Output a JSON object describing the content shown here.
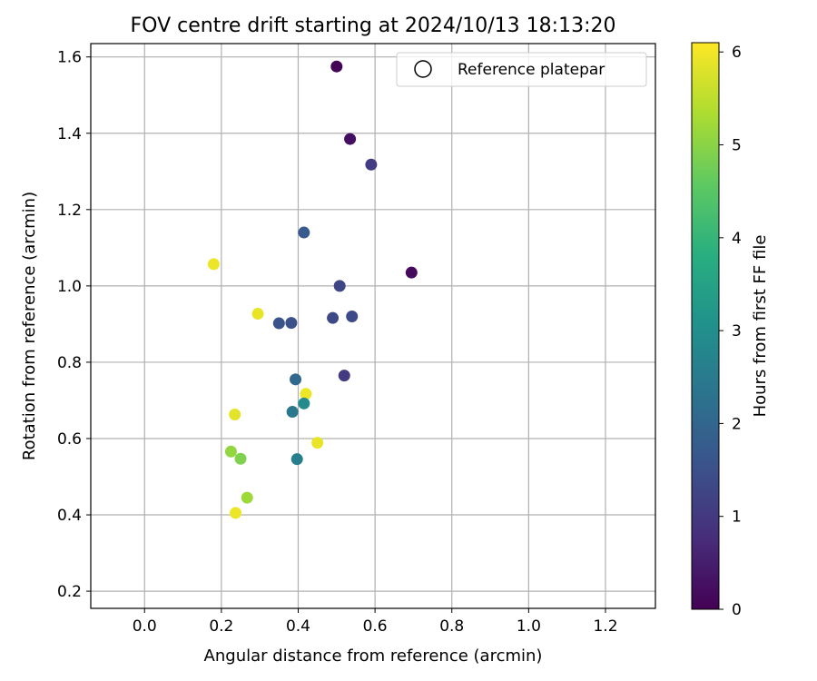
{
  "chart_data": {
    "type": "scatter",
    "title": "FOV centre drift starting at 2024/10/13 18:13:20",
    "xlabel": "Angular distance from reference (arcmin)",
    "ylabel": "Rotation from reference (arcmin)",
    "xlim": [
      -0.14,
      1.33
    ],
    "ylim": [
      0.155,
      1.635
    ],
    "xticks": [
      "0.0",
      "0.2",
      "0.4",
      "0.6",
      "0.8",
      "1.0",
      "1.2"
    ],
    "yticks": [
      "0.2",
      "0.4",
      "0.6",
      "0.8",
      "1.0",
      "1.2",
      "1.4",
      "1.6"
    ],
    "grid": true,
    "legend": {
      "placement": "top-right",
      "entries": [
        "Reference platepar"
      ]
    },
    "colorbar": {
      "label": "Hours from first FF file",
      "colormap": "viridis",
      "range": [
        0,
        6.1
      ],
      "ticks": [
        "0",
        "1",
        "2",
        "3",
        "4",
        "5",
        "6"
      ]
    },
    "points": [
      {
        "x": 0.5,
        "y": 1.575,
        "c": 0.05
      },
      {
        "x": 0.535,
        "y": 1.385,
        "c": 0.25
      },
      {
        "x": 0.59,
        "y": 1.318,
        "c": 1.1
      },
      {
        "x": 0.695,
        "y": 1.035,
        "c": 0.15
      },
      {
        "x": 0.415,
        "y": 1.14,
        "c": 1.75
      },
      {
        "x": 0.18,
        "y": 1.057,
        "c": 5.95
      },
      {
        "x": 0.508,
        "y": 1.0,
        "c": 1.25
      },
      {
        "x": 0.295,
        "y": 0.927,
        "c": 5.9
      },
      {
        "x": 0.35,
        "y": 0.902,
        "c": 1.55
      },
      {
        "x": 0.382,
        "y": 0.903,
        "c": 1.5
      },
      {
        "x": 0.49,
        "y": 0.916,
        "c": 1.35
      },
      {
        "x": 0.54,
        "y": 0.92,
        "c": 1.35
      },
      {
        "x": 0.393,
        "y": 0.755,
        "c": 2.05
      },
      {
        "x": 0.52,
        "y": 0.765,
        "c": 1.05
      },
      {
        "x": 0.42,
        "y": 0.717,
        "c": 5.95
      },
      {
        "x": 0.415,
        "y": 0.692,
        "c": 2.9
      },
      {
        "x": 0.385,
        "y": 0.67,
        "c": 2.4
      },
      {
        "x": 0.235,
        "y": 0.663,
        "c": 5.85
      },
      {
        "x": 0.45,
        "y": 0.589,
        "c": 5.9
      },
      {
        "x": 0.225,
        "y": 0.566,
        "c": 5.1
      },
      {
        "x": 0.25,
        "y": 0.547,
        "c": 4.9
      },
      {
        "x": 0.397,
        "y": 0.546,
        "c": 2.6
      },
      {
        "x": 0.267,
        "y": 0.445,
        "c": 5.2
      },
      {
        "x": 0.237,
        "y": 0.405,
        "c": 5.95
      }
    ]
  }
}
